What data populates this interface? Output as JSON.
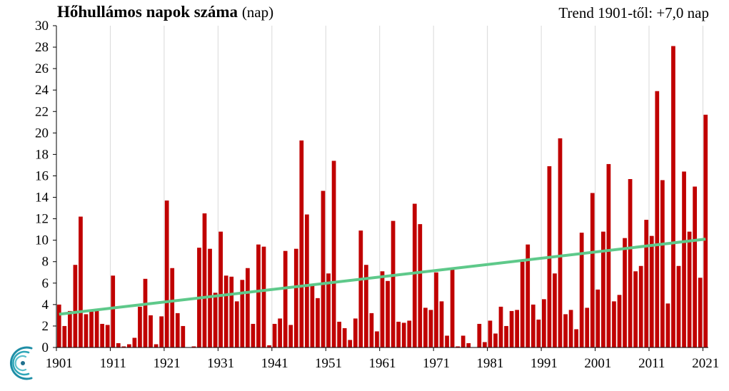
{
  "title": {
    "main": "Hőhullámos napok száma",
    "unit": "(nap)"
  },
  "trend_text": "Trend 1901-től: +7,0 nap",
  "colors": {
    "bar": "#c00000",
    "trend": "#5ec98a",
    "grid": "#d9d9d9",
    "axis": "#000000"
  },
  "logo": "omsz-swirl-logo",
  "chart_data": {
    "type": "bar",
    "title": "Hőhullámos napok száma (nap)",
    "xlabel": "",
    "ylabel": "",
    "ylim": [
      0,
      30
    ],
    "yticks": [
      0,
      2,
      4,
      6,
      8,
      10,
      12,
      14,
      16,
      18,
      20,
      22,
      24,
      26,
      28,
      30
    ],
    "xticks": [
      "1901",
      "1911",
      "1921",
      "1931",
      "1941",
      "1951",
      "1961",
      "1971",
      "1981",
      "1991",
      "2001",
      "2011",
      "2021"
    ],
    "grid": "vertical",
    "x_start": 1901,
    "x_end": 2021,
    "values": [
      4.0,
      2.0,
      3.4,
      7.7,
      12.2,
      3.1,
      3.4,
      3.6,
      2.2,
      2.1,
      6.7,
      0.4,
      0.1,
      0.3,
      0.9,
      3.8,
      6.4,
      3.0,
      0.3,
      2.9,
      13.7,
      7.4,
      3.2,
      2.0,
      0.0,
      0.1,
      9.3,
      12.5,
      9.2,
      5.1,
      10.8,
      6.7,
      6.6,
      4.3,
      6.3,
      7.4,
      2.2,
      9.6,
      9.4,
      0.2,
      2.2,
      2.7,
      9.0,
      2.1,
      9.2,
      19.3,
      12.4,
      5.8,
      4.6,
      14.6,
      6.9,
      17.4,
      2.4,
      1.8,
      0.7,
      2.7,
      10.9,
      7.7,
      3.2,
      1.5,
      7.1,
      6.2,
      11.8,
      2.4,
      2.3,
      2.5,
      13.4,
      11.5,
      3.7,
      3.5,
      7.0,
      4.3,
      1.1,
      7.4,
      0.1,
      1.1,
      0.4,
      0.0,
      2.2,
      0.5,
      2.5,
      1.3,
      3.8,
      2.0,
      3.4,
      3.5,
      8.0,
      9.6,
      4.0,
      2.6,
      4.5,
      16.9,
      6.9,
      19.5,
      3.1,
      3.5,
      1.7,
      10.7,
      3.7,
      14.4,
      5.4,
      10.8,
      17.1,
      4.3,
      4.9,
      10.2,
      15.7,
      7.1,
      7.6,
      11.9,
      10.4,
      23.9,
      15.6,
      4.1,
      28.1,
      7.6,
      16.4,
      10.8,
      15.0,
      6.5,
      21.7
    ],
    "trend": {
      "name": "Trend 1901-től: +7,0 nap",
      "start": [
        1901,
        3.1
      ],
      "end": [
        2021,
        10.1
      ]
    }
  }
}
